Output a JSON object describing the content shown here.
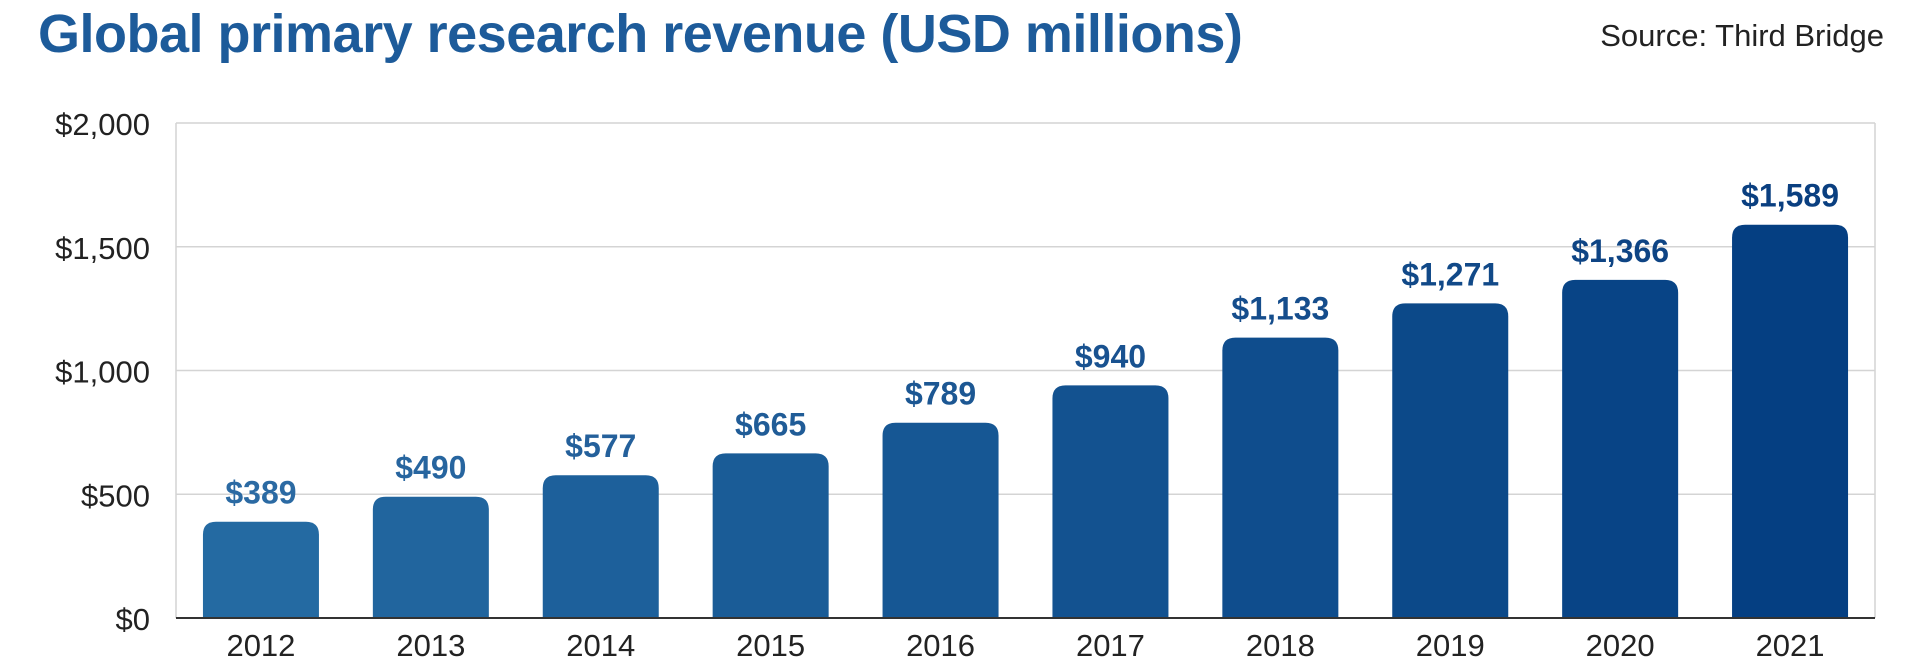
{
  "chart_data": {
    "type": "bar",
    "title": "Global primary research revenue (USD millions)",
    "source": "Source: Third Bridge",
    "xlabel": "",
    "ylabel": "",
    "ylim": [
      0,
      2000
    ],
    "yticks": [
      0,
      500,
      1000,
      1500,
      2000
    ],
    "ytick_labels": [
      "$0",
      "$500",
      "$1,000",
      "$1,500",
      "$2,000"
    ],
    "grid": true,
    "categories": [
      "2012",
      "2013",
      "2014",
      "2015",
      "2016",
      "2017",
      "2018",
      "2019",
      "2020",
      "2021"
    ],
    "values": [
      389,
      490,
      577,
      665,
      789,
      940,
      1133,
      1271,
      1366,
      1589
    ],
    "value_labels": [
      "$389",
      "$490",
      "$577",
      "$665",
      "$789",
      "$940",
      "$1,133",
      "$1,271",
      "$1,366",
      "$1,589"
    ],
    "colors": {
      "bar_start": "#246aa2",
      "bar_end": "#053f82",
      "label_start": "#2b6aa3",
      "label_end": "#0a3f80",
      "grid": "#d4d4d4",
      "axis": "#333333",
      "tick_text": "#222222"
    }
  }
}
